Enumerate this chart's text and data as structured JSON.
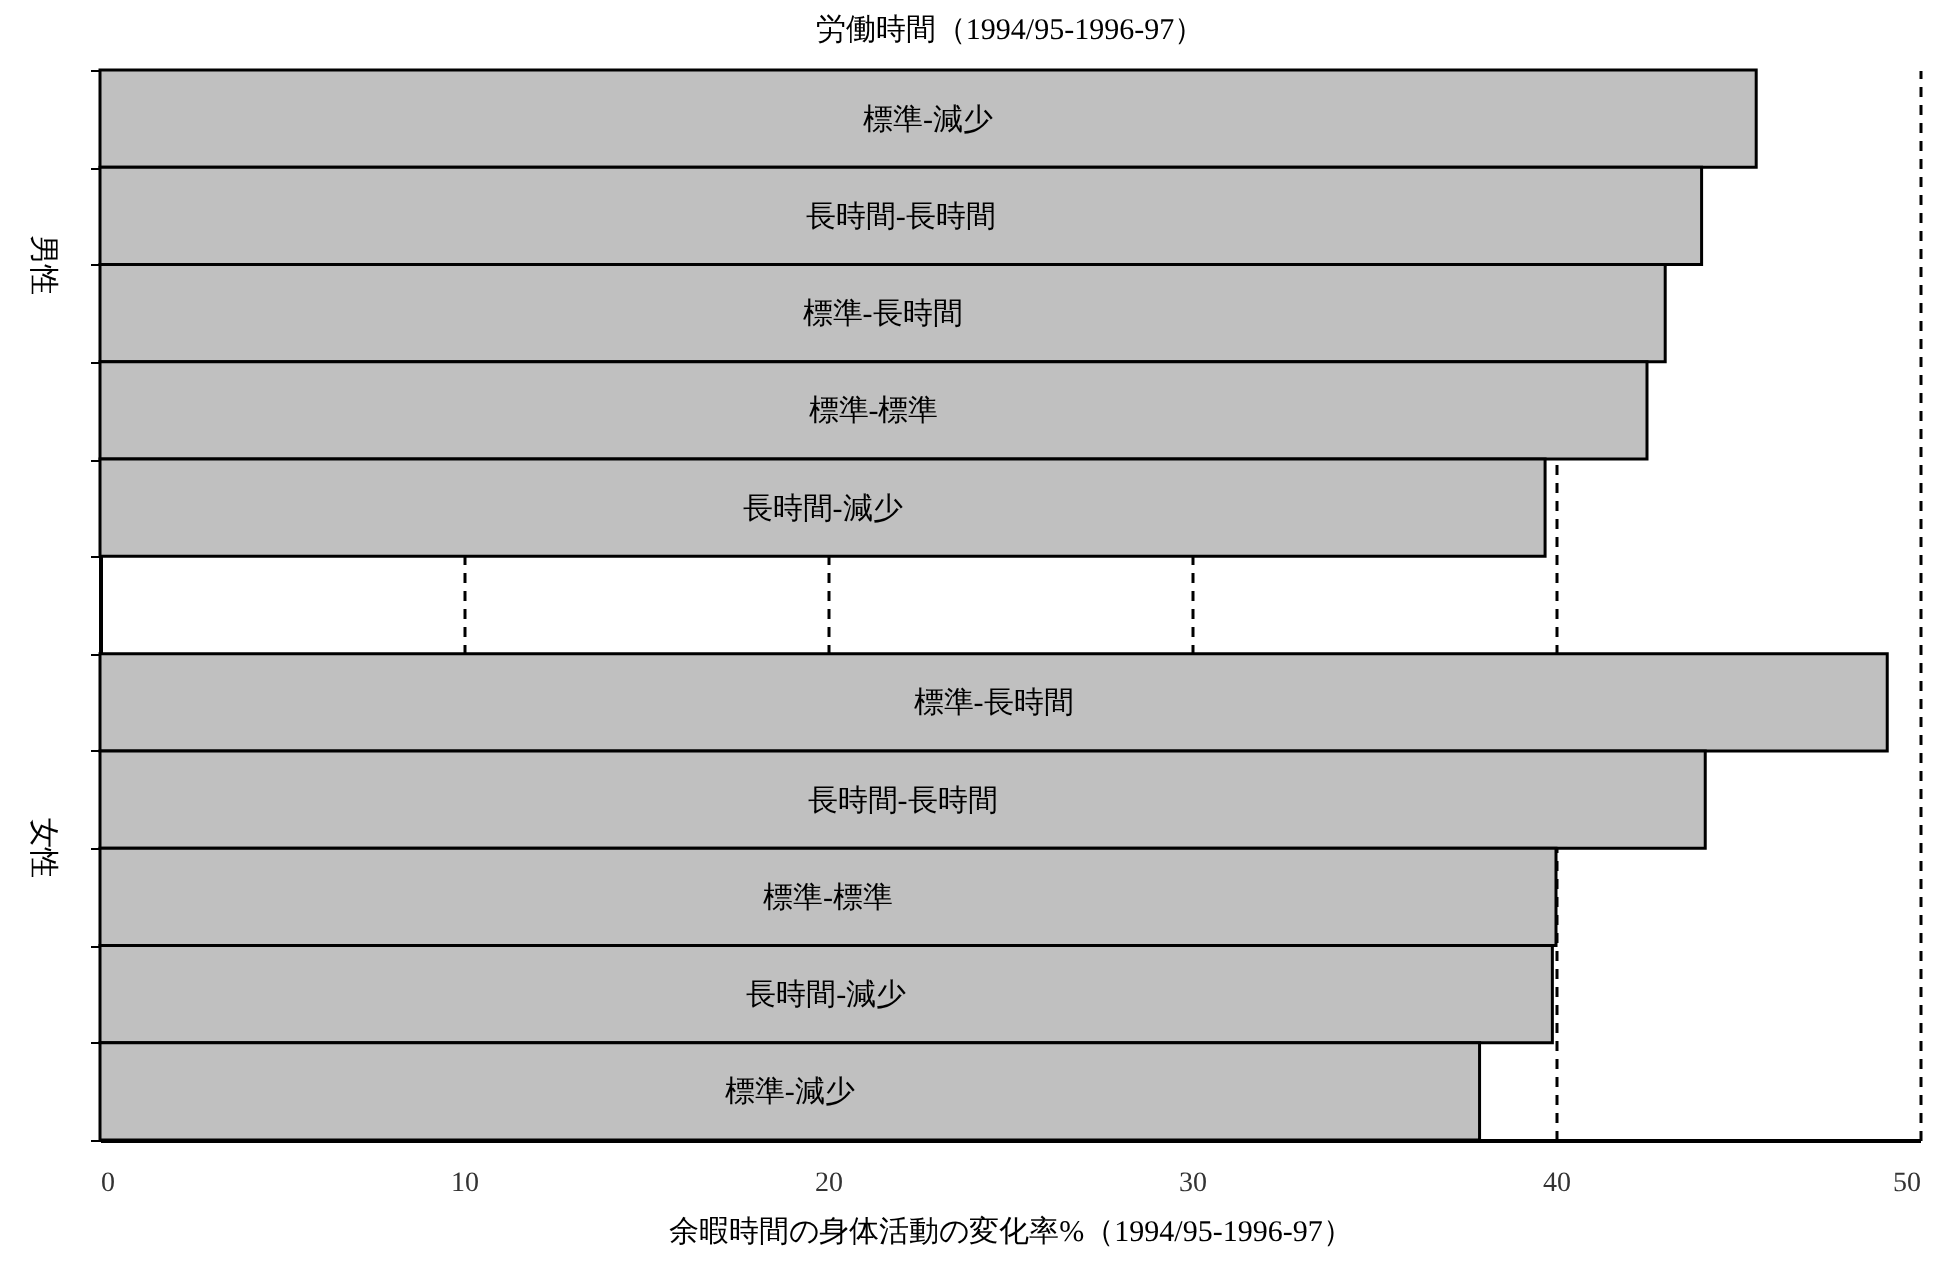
{
  "chart_data": {
    "type": "bar",
    "orientation": "horizontal",
    "title": "労働時間（1994/95-1996-97）",
    "xlabel": "余暇時間の身体活動の変化率%（1994/95-1996-97）",
    "categories": [
      "標準-減少",
      "長時間-長時間",
      "標準-長時間",
      "標準-標準",
      "長時間-減少",
      null,
      "標準-長時間",
      "長時間-長時間",
      "標準-標準",
      "長時間-減少",
      "標準-減少"
    ],
    "values": [
      45.5,
      44.0,
      43.0,
      42.5,
      39.7,
      null,
      49.1,
      44.1,
      40.0,
      39.9,
      37.9
    ],
    "color": "#c0c0c0",
    "xlim": [
      0,
      50
    ],
    "xticks": [
      0,
      10,
      20,
      30,
      40,
      50
    ],
    "grid": "x",
    "annotations": [
      "男性",
      "女性"
    ]
  }
}
